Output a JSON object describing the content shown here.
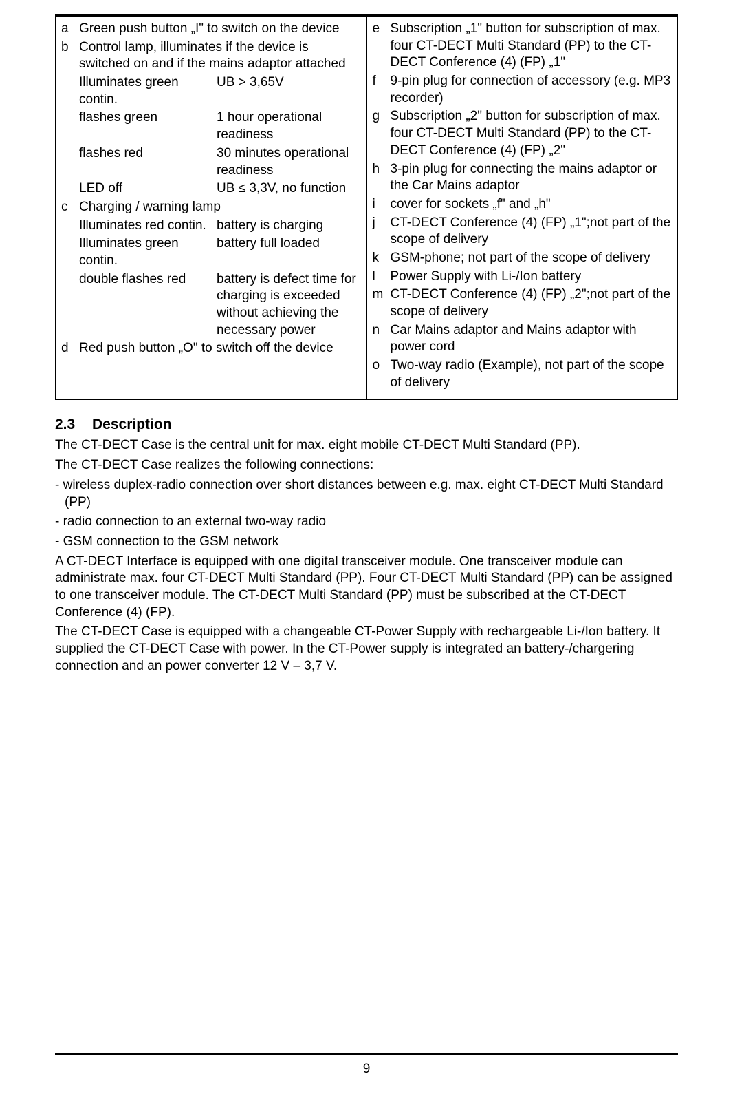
{
  "colors": {
    "text": "#000000",
    "background": "#ffffff",
    "rule": "#000000"
  },
  "typography": {
    "font_family": "Arial",
    "body_size_pt": 14,
    "heading_size_pt": 16,
    "line_height": 1.3
  },
  "legend": {
    "left": [
      {
        "letter": "a",
        "text": "Green push button „I\" to switch on the device"
      },
      {
        "letter": "b",
        "text": "Control lamp, illuminates if the device is switched on and if the mains adaptor attached",
        "sub": [
          {
            "l": "Illuminates green contin.",
            "r": "UB > 3,65V"
          },
          {
            "l": "flashes green",
            "r": "1 hour operational readiness"
          },
          {
            "l": "flashes red",
            "r": "30 minutes operational readiness"
          },
          {
            "l": "LED off",
            "r": "UB ≤ 3,3V, no function"
          }
        ]
      },
      {
        "letter": "c",
        "text": "Charging / warning lamp",
        "sub": [
          {
            "l": "Illuminates red contin.",
            "r": "battery is charging"
          },
          {
            "l": "Illuminates green contin.",
            "r": "battery full loaded"
          },
          {
            "l": "double flashes red",
            "r": "battery is defect time for charging is exceeded without achieving the necessary power"
          }
        ]
      },
      {
        "letter": "d",
        "text": "Red push button „O\" to switch off the device"
      }
    ],
    "right": [
      {
        "letter": "e",
        "text": "Subscription „1\" button for subscription of max. four CT-DECT Multi Standard (PP) to the CT-DECT Conference (4) (FP) „1\""
      },
      {
        "letter": "f",
        "text": "9-pin plug for connection of accessory (e.g. MP3 recorder)"
      },
      {
        "letter": "g",
        "text": "Subscription „2\" button for subscription of max. four CT-DECT Multi Standard (PP) to the CT-DECT Conference (4) (FP) „2\""
      },
      {
        "letter": "h",
        "text": "3-pin plug for connecting the mains adaptor or the Car Mains adaptor"
      },
      {
        "letter": "i",
        "text": "cover for sockets „f\" and „h\""
      },
      {
        "letter": "j",
        "text": "CT-DECT Conference (4) (FP) „1\";not part of the scope of delivery"
      },
      {
        "letter": "k",
        "text": "GSM-phone; not part of the scope of delivery"
      },
      {
        "letter": "l",
        "text": "Power Supply with Li-/Ion battery"
      },
      {
        "letter": "m",
        "text": "CT-DECT Conference (4) (FP) „2\";not part of the scope of delivery"
      },
      {
        "letter": "n",
        "text": "Car Mains adaptor and Mains adaptor with power cord"
      },
      {
        "letter": "o",
        "text": "Two-way radio (Example), not part of the scope of delivery"
      }
    ]
  },
  "section": {
    "number": "2.3",
    "title": "Description",
    "paragraphs": [
      "The CT-DECT Case is the central unit for max. eight mobile CT-DECT Multi Standard (PP).",
      "The CT-DECT Case realizes the following connections:",
      "- wireless duplex-radio connection over short distances between e.g. max. eight CT-DECT Multi Standard (PP)",
      "- radio connection to an external two-way radio",
      "- GSM connection to the GSM network",
      "A CT-DECT Interface is equipped with one digital transceiver module. One transceiver module can administrate max. four CT-DECT Multi Standard (PP). Four CT-DECT Multi Standard (PP) can be assigned to one transceiver module. The CT-DECT Multi Standard (PP) must be subscribed at the CT-DECT Conference (4) (FP).",
      "The CT-DECT Case is equipped with a changeable CT-Power Supply with rechargeable Li-/Ion battery. It supplied the CT-DECT Case with power. In the CT-Power supply is integrated an battery-/chargering connection and an power converter 12 V – 3,7 V."
    ]
  },
  "page_number": "9"
}
